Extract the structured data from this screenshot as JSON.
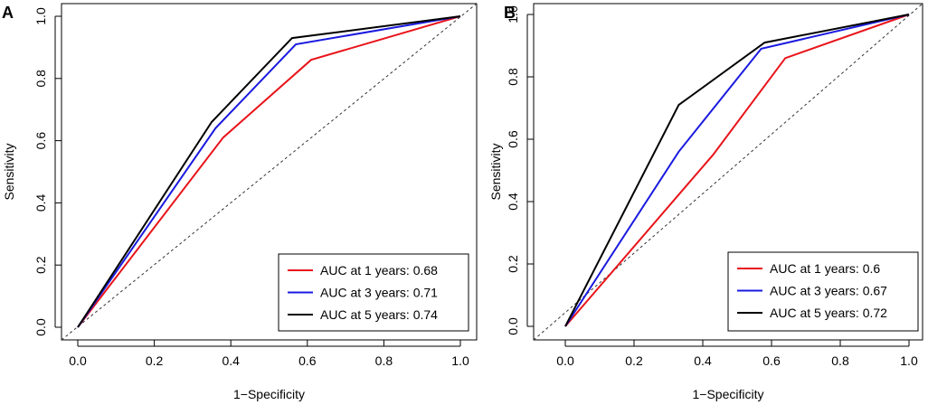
{
  "chart_data": [
    {
      "type": "line",
      "panel_label": "A",
      "title": "",
      "xlabel": "1−Specificity",
      "ylabel": "Sensitivity",
      "xlim": [
        0,
        1
      ],
      "ylim": [
        0,
        1
      ],
      "xticks": [
        "0.0",
        "0.2",
        "0.4",
        "0.6",
        "0.8",
        "1.0"
      ],
      "yticks": [
        "0.0",
        "0.2",
        "0.4",
        "0.6",
        "0.8",
        "1.0"
      ],
      "reference_line": "diagonal",
      "legend_position": "bottom-right",
      "series": [
        {
          "name": "AUC at 1 years: 0.68",
          "color": "#e8141a",
          "x": [
            0,
            0.38,
            0.61,
            1
          ],
          "y": [
            0,
            0.61,
            0.86,
            1
          ]
        },
        {
          "name": "AUC at 3 years: 0.71",
          "color": "#1a1ae0",
          "x": [
            0,
            0.36,
            0.57,
            1
          ],
          "y": [
            0,
            0.64,
            0.91,
            1
          ]
        },
        {
          "name": "AUC at 5 years: 0.74",
          "color": "#000000",
          "x": [
            0,
            0.35,
            0.56,
            1
          ],
          "y": [
            0,
            0.66,
            0.93,
            1
          ]
        }
      ]
    },
    {
      "type": "line",
      "panel_label": "B",
      "title": "",
      "xlabel": "1−Specificity",
      "ylabel": "Sensitivity",
      "xlim": [
        0,
        1
      ],
      "ylim": [
        0,
        1
      ],
      "xticks": [
        "0.0",
        "0.2",
        "0.4",
        "0.6",
        "0.8",
        "1.0"
      ],
      "yticks": [
        "0.0",
        "0.2",
        "0.4",
        "0.6",
        "0.8",
        "1.0"
      ],
      "reference_line": "diagonal",
      "legend_position": "bottom-right",
      "series": [
        {
          "name": "AUC at 1 years: 0.6",
          "color": "#e8141a",
          "x": [
            0,
            0.43,
            0.64,
            1
          ],
          "y": [
            0,
            0.55,
            0.86,
            1
          ]
        },
        {
          "name": "AUC at 3 years: 0.67",
          "color": "#1a1ae0",
          "x": [
            0,
            0.33,
            0.57,
            1
          ],
          "y": [
            0,
            0.56,
            0.89,
            1
          ]
        },
        {
          "name": "AUC at 5 years: 0.72",
          "color": "#000000",
          "x": [
            0,
            0.33,
            0.58,
            1
          ],
          "y": [
            0,
            0.71,
            0.91,
            1
          ]
        }
      ]
    }
  ]
}
